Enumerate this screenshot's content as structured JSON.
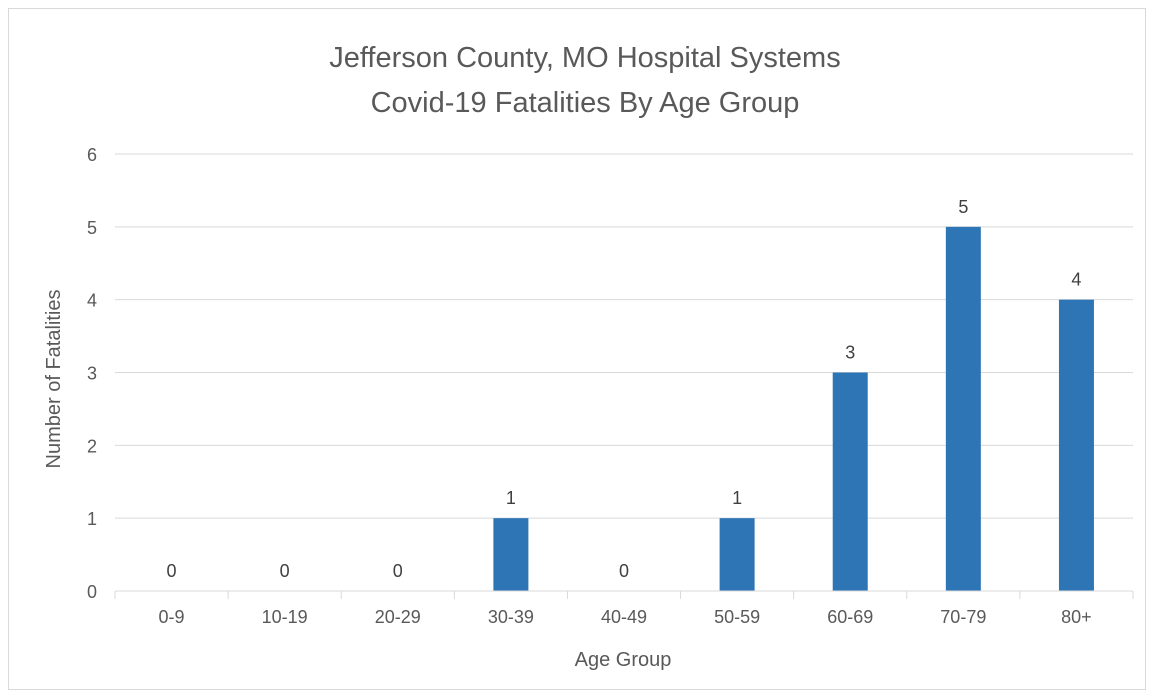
{
  "chart_data": {
    "type": "bar",
    "title_lines": [
      "Jefferson County, MO Hospital Systems",
      "Covid-19 Fatalities By Age Group"
    ],
    "xlabel": "Age Group",
    "ylabel": "Number of Fatalities",
    "categories": [
      "0-9",
      "10-19",
      "20-29",
      "30-39",
      "40-49",
      "50-59",
      "60-69",
      "70-79",
      "80+"
    ],
    "values": [
      0,
      0,
      0,
      1,
      0,
      1,
      3,
      5,
      4
    ],
    "data_labels": [
      "0",
      "0",
      "0",
      "1",
      "0",
      "1",
      "3",
      "5",
      "4"
    ],
    "ylim": [
      0,
      6
    ],
    "yticks": [
      "0",
      "1",
      "2",
      "3",
      "4",
      "5",
      "6"
    ],
    "grid": true,
    "legend": "none",
    "colors": {
      "bar": "#2e75b6",
      "grid": "#d9d9d9",
      "text": "#595959"
    }
  }
}
